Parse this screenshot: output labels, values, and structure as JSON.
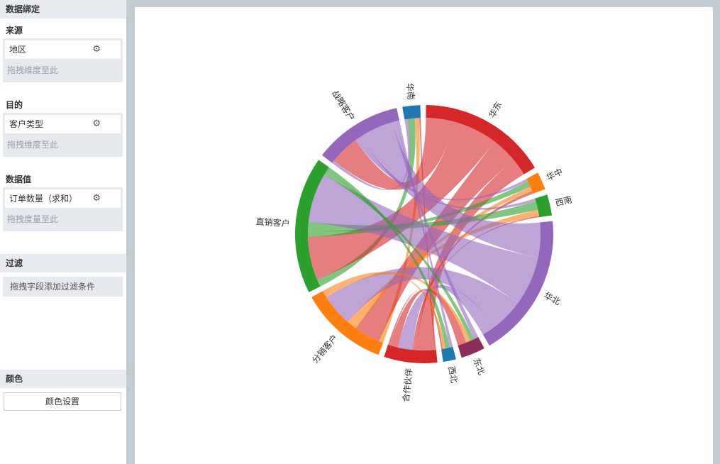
{
  "sidebar": {
    "binding_title": "数据绑定",
    "source": {
      "label": "来源",
      "field": "地区",
      "hint": "拖拽维度至此"
    },
    "target": {
      "label": "目的",
      "field": "客户类型",
      "hint": "拖拽维度至此"
    },
    "value": {
      "label": "数据值",
      "field": "订单数量（求和）",
      "hint": "拖拽度量至此"
    },
    "filter": {
      "title": "过滤",
      "hint": "拖拽字段添加过滤条件"
    },
    "color": {
      "title": "颜色",
      "button": "颜色设置"
    },
    "icons": {
      "settings": "gear-icon"
    }
  },
  "chart_data": {
    "type": "chord",
    "title": "",
    "groups": [
      {
        "name": "华南",
        "color": "#1f77b4"
      },
      {
        "name": "华东",
        "color": "#d62728"
      },
      {
        "name": "华中",
        "color": "#ff7f0e"
      },
      {
        "name": "西南",
        "color": "#2ca02c"
      },
      {
        "name": "华北",
        "color": "#9467bd"
      },
      {
        "name": "东北",
        "color": "#8c2d5a"
      },
      {
        "name": "西北",
        "color": "#1f77b4"
      },
      {
        "name": "合作伙伴",
        "color": "#d62728"
      },
      {
        "name": "分销客户",
        "color": "#ff7f0e"
      },
      {
        "name": "直销客户",
        "color": "#2ca02c"
      },
      {
        "name": "战略客户",
        "color": "#9467bd"
      }
    ],
    "sources": [
      "华南",
      "华东",
      "华中",
      "西南",
      "华北",
      "东北",
      "西北"
    ],
    "targets": [
      "合作伙伴",
      "分销客户",
      "直销客户",
      "战略客户"
    ],
    "matrix": [
      [
        1,
        3,
        5,
        2
      ],
      [
        12,
        18,
        30,
        20
      ],
      [
        2,
        3,
        4,
        2
      ],
      [
        1,
        4,
        6,
        2
      ],
      [
        10,
        22,
        34,
        24
      ],
      [
        6,
        3,
        3,
        3
      ],
      [
        1,
        2,
        3,
        2
      ]
    ]
  }
}
